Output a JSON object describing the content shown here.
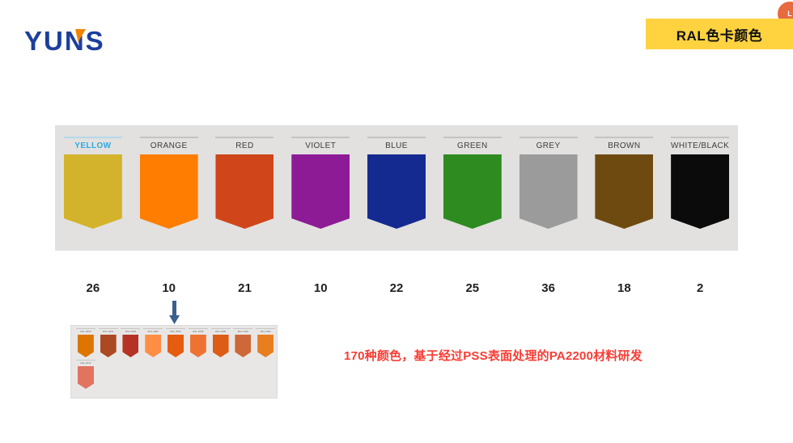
{
  "logo": {
    "text": "YUNS"
  },
  "corner_badge": {
    "text": "L",
    "color": "#e76a41"
  },
  "banner": {
    "title": "RAL色卡颜色",
    "bg": "#fed33f"
  },
  "palette": {
    "active_label_color": "#2ba9e1",
    "active_line_color": "#b5d9eb",
    "inactive_line_color": "#c3c3c3",
    "band_bg": "#e2e1e0",
    "tabs": [
      {
        "label": "YELLOW",
        "color": "#d4b32c",
        "count": "26",
        "active": true
      },
      {
        "label": "ORANGE",
        "color": "#ff7d00",
        "count": "10",
        "active": false
      },
      {
        "label": "RED",
        "color": "#d04519",
        "count": "21",
        "active": false
      },
      {
        "label": "VIOLET",
        "color": "#8e1b96",
        "count": "10",
        "active": false
      },
      {
        "label": "BLUE",
        "color": "#152a90",
        "count": "22",
        "active": false
      },
      {
        "label": "GREEN",
        "color": "#2e8b20",
        "count": "25",
        "active": false
      },
      {
        "label": "GREY",
        "color": "#9b9b9b",
        "count": "36",
        "active": false
      },
      {
        "label": "BROWN",
        "color": "#6f4a10",
        "count": "18",
        "active": false
      },
      {
        "label": "WHITE/BLACK",
        "color": "#0b0b0b",
        "count": "2",
        "active": false
      }
    ]
  },
  "arrow": {
    "color": "#3a5f8f"
  },
  "mini_panel": {
    "row1": [
      {
        "label": "RAL 2000",
        "color": "#dd7500"
      },
      {
        "label": "RAL 2001",
        "color": "#ad4824"
      },
      {
        "label": "RAL 2002",
        "color": "#b53224"
      },
      {
        "label": "RAL 2003",
        "color": "#ff8e44"
      },
      {
        "label": "RAL 2004",
        "color": "#e55c10"
      },
      {
        "label": "RAL 2008",
        "color": "#ee7232"
      },
      {
        "label": "RAL 2009",
        "color": "#dd5c16"
      },
      {
        "label": "RAL 2010",
        "color": "#cf6838"
      },
      {
        "label": "RAL 2011",
        "color": "#e97e20"
      }
    ],
    "row2": [
      {
        "label": "RAL 2012",
        "color": "#e1735f"
      }
    ]
  },
  "note": {
    "text": "170种颜色，基于经过PSS表面处理的PA2200材料研发",
    "color": "#fa3c34"
  }
}
